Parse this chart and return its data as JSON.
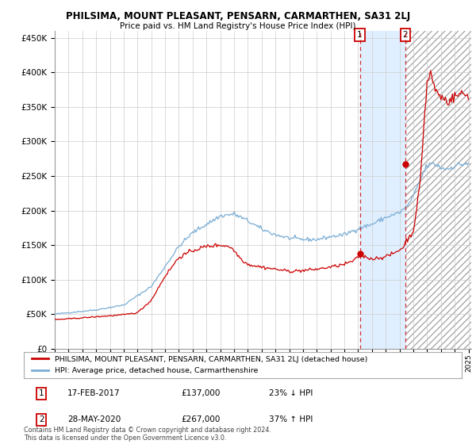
{
  "title": "PHILSIMA, MOUNT PLEASANT, PENSARN, CARMARTHEN, SA31 2LJ",
  "subtitle": "Price paid vs. HM Land Registry's House Price Index (HPI)",
  "legend_line1": "PHILSIMA, MOUNT PLEASANT, PENSARN, CARMARTHEN, SA31 2LJ (detached house)",
  "legend_line2": "HPI: Average price, detached house, Carmarthenshire",
  "annotation1_date": "17-FEB-2017",
  "annotation1_price": "£137,000",
  "annotation1_pct": "23% ↓ HPI",
  "annotation2_date": "28-MAY-2020",
  "annotation2_price": "£267,000",
  "annotation2_pct": "37% ↑ HPI",
  "footnote": "Contains HM Land Registry data © Crown copyright and database right 2024.\nThis data is licensed under the Open Government Licence v3.0.",
  "red_line_color": "#cc0000",
  "blue_line_color": "#7aadd4",
  "background_color": "#ffffff",
  "plot_bg_color": "#ffffff",
  "grid_color": "#cccccc",
  "shade_color": "#ddeeff",
  "hatch_color": "#cccccc",
  "ylim": [
    0,
    460000
  ],
  "ytick_values": [
    0,
    50000,
    100000,
    150000,
    200000,
    250000,
    300000,
    350000,
    400000,
    450000
  ],
  "sale1_year": 2017.12,
  "sale1_price": 137000,
  "sale2_year": 2020.41,
  "sale2_price": 267000,
  "xstart": 1995.0,
  "xend": 2025.2
}
